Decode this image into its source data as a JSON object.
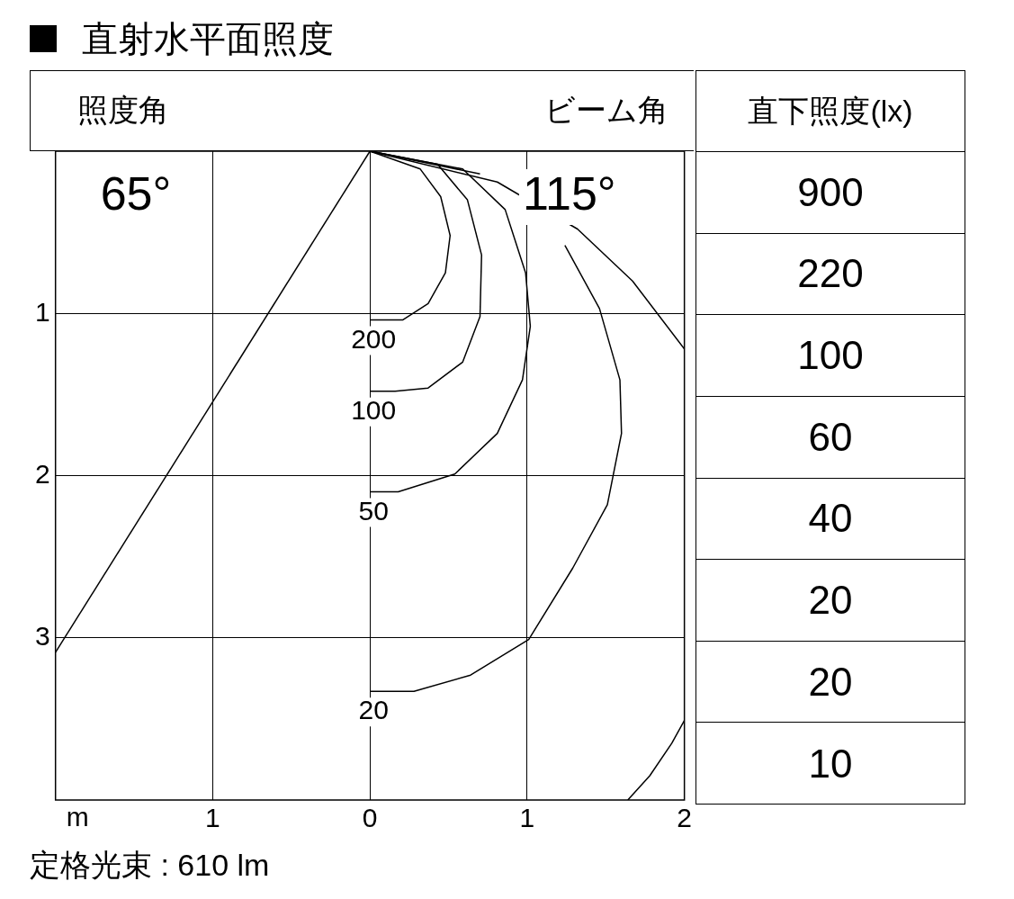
{
  "chart_data": [
    {
      "type": "line",
      "title": "直射水平面照度",
      "xlabel": "m",
      "xlim": [
        -2,
        2
      ],
      "ylim": [
        4,
        0
      ],
      "xticks": [
        {
          "value": -1,
          "label": "1"
        },
        0,
        1,
        2
      ],
      "yticks": [
        1,
        2,
        3
      ],
      "grid": true,
      "marker": "none",
      "line_style": "solid",
      "annotations": [
        "照度角",
        "ビーム角",
        "65°",
        "115°",
        "定格光束 : 610 lm"
      ],
      "series": [
        {
          "name": "200",
          "color": "#000000",
          "x": [
            0,
            0.32,
            0.45,
            0.51,
            0.48,
            0.37,
            0.21,
            0
          ],
          "values": [
            0,
            0.11,
            0.28,
            0.52,
            0.75,
            0.94,
            1.04,
            1.04
          ]
        },
        {
          "name": "100",
          "color": "#000000",
          "x": [
            0,
            0.43,
            0.62,
            0.71,
            0.7,
            0.59,
            0.37,
            0.16,
            0
          ],
          "values": [
            0,
            0.08,
            0.3,
            0.64,
            1.02,
            1.3,
            1.46,
            1.48,
            1.48
          ]
        },
        {
          "name": "50",
          "color": "#000000",
          "x": [
            0,
            0.59,
            0.86,
            0.99,
            1.02,
            0.97,
            0.81,
            0.54,
            0.18,
            0
          ],
          "values": [
            0,
            0.11,
            0.36,
            0.75,
            1.08,
            1.41,
            1.74,
            1.99,
            2.1,
            2.1
          ]
        },
        {
          "name": "20",
          "color": "#000000",
          "x": [
            0,
            0.7,
            null,
            1.24,
            1.46,
            1.59,
            1.6,
            1.51,
            1.29,
            1.01,
            0.64,
            0.28,
            0
          ],
          "values": [
            0,
            0.14,
            null,
            0.58,
            0.97,
            1.41,
            1.74,
            2.18,
            2.57,
            3.01,
            3.23,
            3.33,
            3.33
          ]
        },
        {
          "color": "#000000",
          "x": [
            0,
            0.81,
            1.32,
            1.67,
            2,
            null,
            2,
            1.92,
            1.78,
            1.64
          ],
          "values": [
            0,
            0.19,
            0.48,
            0.8,
            1.22,
            null,
            3.51,
            3.65,
            3.85,
            4
          ]
        },
        {
          "color": "#000000",
          "x": [
            0,
            -2
          ],
          "values": [
            0,
            3.09
          ]
        }
      ]
    },
    {
      "type": "other",
      "title": "直下照度(lx)",
      "annotations": [
        "900",
        "220",
        "100",
        "60",
        "40",
        "20",
        "20",
        "10"
      ]
    }
  ]
}
